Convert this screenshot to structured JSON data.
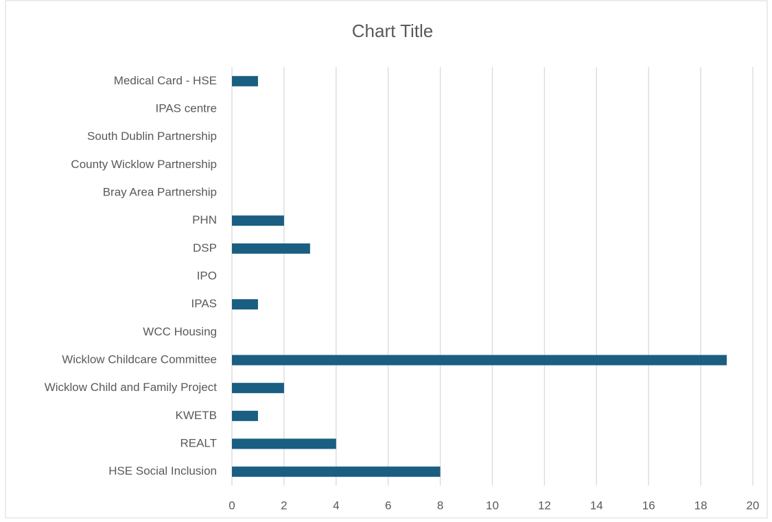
{
  "chart_data": {
    "type": "bar",
    "orientation": "horizontal",
    "title": "Chart Title",
    "categories": [
      "Medical Card - HSE",
      "IPAS centre",
      "South Dublin Partnership",
      "County Wicklow Partnership",
      "Bray Area Partnership",
      "PHN",
      "DSP",
      "IPO",
      "IPAS",
      "WCC Housing",
      "Wicklow Childcare Committee",
      "Wicklow Child and Family Project",
      "KWETB",
      "REALT",
      "HSE Social Inclusion"
    ],
    "values": [
      1,
      0,
      0,
      0,
      0,
      2,
      3,
      0,
      1,
      0,
      19,
      2,
      1,
      4,
      8
    ],
    "color": "#1a5e82",
    "xlim": [
      0,
      20
    ],
    "xticks": [
      0,
      2,
      4,
      6,
      8,
      10,
      12,
      14,
      16,
      18,
      20
    ],
    "grid": true
  }
}
